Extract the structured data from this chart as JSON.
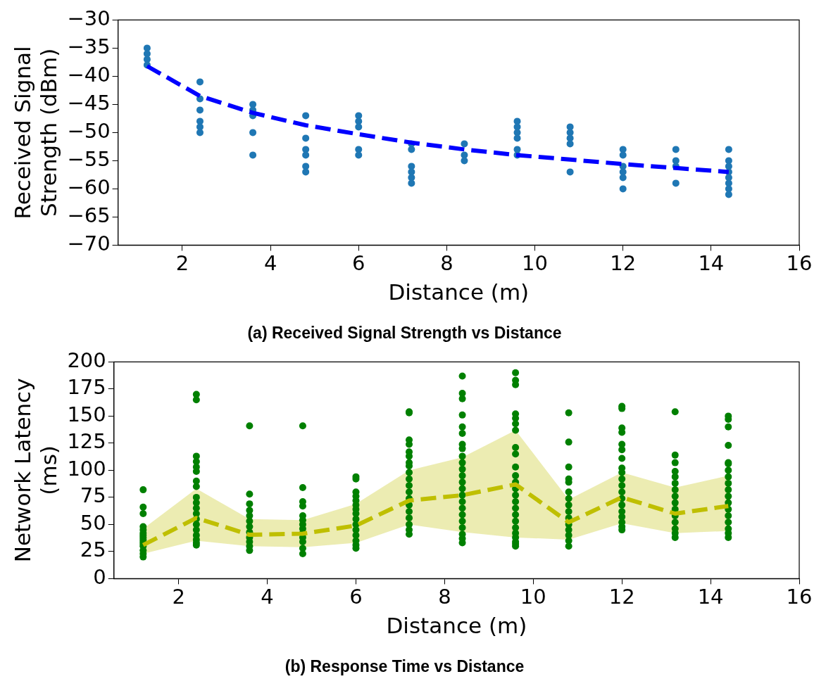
{
  "chart_data": [
    {
      "type": "scatter",
      "title": "(a) Received Signal Strength vs Distance",
      "xlabel": "Distance (m)",
      "ylabel": "Received Signal\nStrength (dBm)",
      "xlim": [
        0.54,
        16
      ],
      "xticks": [
        2,
        4,
        6,
        8,
        10,
        12,
        14,
        16
      ],
      "ylim": [
        -70,
        -30
      ],
      "yticks": [
        -70,
        -65,
        -60,
        -55,
        -50,
        -45,
        -40,
        -35,
        -30
      ],
      "grid": false,
      "legend": false,
      "marker": "circle",
      "series": [
        {
          "color": "#1f77b4",
          "x": [
            1.2,
            1.2,
            1.2,
            1.2,
            2.4,
            2.4,
            2.4,
            2.4,
            2.4,
            2.4,
            3.6,
            3.6,
            3.6,
            3.6,
            3.6,
            4.8,
            4.8,
            4.8,
            4.8,
            4.8,
            4.8,
            6,
            6,
            6,
            6,
            6,
            7.2,
            7.2,
            7.2,
            7.2,
            7.2,
            7.2,
            8.4,
            8.4,
            8.4,
            9.6,
            9.6,
            9.6,
            9.6,
            9.6,
            9.6,
            10.8,
            10.8,
            10.8,
            10.8,
            10.8,
            12,
            12,
            12,
            12,
            12,
            12,
            13.2,
            13.2,
            13.2,
            13.2,
            14.4,
            14.4,
            14.4,
            14.4,
            14.4,
            14.4,
            14.4,
            14.4
          ],
          "values": [
            -35,
            -36,
            -37,
            -38,
            -41,
            -44,
            -46,
            -48,
            -49,
            -50,
            -45,
            -46,
            -47,
            -50,
            -54,
            -47,
            -51,
            -53,
            -54,
            -56,
            -57,
            -47,
            -48,
            -49,
            -53,
            -54,
            -52,
            -53,
            -56,
            -57,
            -58,
            -59,
            -52,
            -54,
            -55,
            -48,
            -49,
            -50,
            -51,
            -53,
            -54,
            -49,
            -50,
            -51,
            -52,
            -57,
            -53,
            -54,
            -56,
            -57,
            -58,
            -60,
            -53,
            -55,
            -56,
            -59,
            -53,
            -55,
            -56,
            -57,
            -58,
            -59,
            -60,
            -61
          ]
        },
        {
          "type": "line",
          "color": "#0000ff",
          "line_style": "dashed",
          "marker": "none",
          "x": [
            1.2,
            2.4,
            3.6,
            4.8,
            6,
            7.2,
            8.4,
            9.6,
            10.8,
            12,
            13.2,
            14.4
          ],
          "values": [
            -38.2,
            -43.5,
            -46.5,
            -48.7,
            -50.3,
            -51.8,
            -53,
            -54,
            -54.8,
            -55.6,
            -56.3,
            -57
          ]
        }
      ]
    },
    {
      "type": "scatter",
      "title": "(b) Response Time vs Distance",
      "xlabel": "Distance (m)",
      "ylabel": "Network Latency\n(ms)",
      "xlim": [
        0.54,
        16
      ],
      "xticks": [
        2,
        4,
        6,
        8,
        10,
        12,
        14,
        16
      ],
      "ylim": [
        0,
        200
      ],
      "yticks": [
        0,
        25,
        50,
        75,
        100,
        125,
        150,
        175,
        200
      ],
      "grid": false,
      "legend": false,
      "marker": "circle",
      "series": [
        {
          "color": "#008000",
          "x": [
            1.2,
            1.2,
            1.2,
            1.2,
            1.2,
            1.2,
            1.2,
            1.2,
            1.2,
            1.2,
            1.2,
            1.2,
            1.2,
            1.2,
            1.2,
            2.4,
            2.4,
            2.4,
            2.4,
            2.4,
            2.4,
            2.4,
            2.4,
            2.4,
            2.4,
            2.4,
            2.4,
            2.4,
            2.4,
            2.4,
            2.4,
            2.4,
            2.4,
            2.4,
            3.6,
            3.6,
            3.6,
            3.6,
            3.6,
            3.6,
            3.6,
            3.6,
            3.6,
            3.6,
            3.6,
            3.6,
            4.8,
            4.8,
            4.8,
            4.8,
            4.8,
            4.8,
            4.8,
            4.8,
            4.8,
            4.8,
            4.8,
            4.8,
            4.8,
            6,
            6,
            6,
            6,
            6,
            6,
            6,
            6,
            6,
            6,
            6,
            6,
            6,
            6,
            6,
            7.2,
            7.2,
            7.2,
            7.2,
            7.2,
            7.2,
            7.2,
            7.2,
            7.2,
            7.2,
            7.2,
            7.2,
            7.2,
            7.2,
            7.2,
            7.2,
            7.2,
            7.2,
            7.2,
            8.4,
            8.4,
            8.4,
            8.4,
            8.4,
            8.4,
            8.4,
            8.4,
            8.4,
            8.4,
            8.4,
            8.4,
            8.4,
            8.4,
            8.4,
            8.4,
            8.4,
            8.4,
            8.4,
            8.4,
            8.4,
            8.4,
            8.4,
            9.6,
            9.6,
            9.6,
            9.6,
            9.6,
            9.6,
            9.6,
            9.6,
            9.6,
            9.6,
            9.6,
            9.6,
            9.6,
            9.6,
            9.6,
            9.6,
            9.6,
            9.6,
            9.6,
            9.6,
            9.6,
            9.6,
            9.6,
            9.6,
            10.8,
            10.8,
            10.8,
            10.8,
            10.8,
            10.8,
            10.8,
            10.8,
            10.8,
            10.8,
            10.8,
            10.8,
            10.8,
            10.8,
            10.8,
            12,
            12,
            12,
            12,
            12,
            12,
            12,
            12,
            12,
            12,
            12,
            12,
            12,
            12,
            12,
            12,
            12,
            12,
            12,
            13.2,
            13.2,
            13.2,
            13.2,
            13.2,
            13.2,
            13.2,
            13.2,
            13.2,
            13.2,
            13.2,
            13.2,
            13.2,
            13.2,
            13.2,
            14.4,
            14.4,
            14.4,
            14.4,
            14.4,
            14.4,
            14.4,
            14.4,
            14.4,
            14.4,
            14.4,
            14.4,
            14.4,
            14.4,
            14.4,
            14.4,
            14.4,
            14.4
          ],
          "values": [
            82,
            66,
            60,
            48,
            45,
            42,
            40,
            38,
            36,
            34,
            32,
            30,
            26,
            23,
            20,
            170,
            165,
            113,
            108,
            103,
            99,
            90,
            85,
            75,
            70,
            65,
            60,
            55,
            50,
            45,
            40,
            36,
            33,
            31,
            141,
            78,
            69,
            63,
            58,
            53,
            48,
            43,
            38,
            34,
            30,
            26,
            141,
            84,
            71,
            67,
            58,
            54,
            50,
            46,
            42,
            38,
            34,
            28,
            23,
            94,
            92,
            80,
            76,
            72,
            68,
            64,
            60,
            55,
            50,
            45,
            40,
            35,
            31,
            28,
            154,
            153,
            128,
            124,
            117,
            113,
            107,
            104,
            98,
            92,
            86,
            80,
            74,
            68,
            62,
            56,
            50,
            45,
            41,
            187,
            171,
            166,
            151,
            140,
            134,
            124,
            120,
            113,
            107,
            101,
            95,
            89,
            83,
            77,
            71,
            65,
            59,
            53,
            47,
            41,
            37,
            33,
            190,
            183,
            179,
            152,
            148,
            143,
            137,
            121,
            115,
            103,
            95,
            89,
            83,
            77,
            71,
            65,
            59,
            53,
            47,
            42,
            38,
            34,
            32,
            30,
            153,
            126,
            103,
            92,
            89,
            80,
            74,
            68,
            62,
            56,
            50,
            45,
            40,
            35,
            30,
            159,
            157,
            139,
            135,
            124,
            119,
            111,
            102,
            98,
            92,
            86,
            80,
            74,
            68,
            62,
            57,
            52,
            48,
            45,
            154,
            114,
            107,
            99,
            94,
            88,
            82,
            76,
            70,
            64,
            58,
            52,
            46,
            42,
            38,
            150,
            147,
            140,
            123,
            107,
            106,
            100,
            94,
            88,
            82,
            76,
            70,
            64,
            58,
            52,
            46,
            42,
            38
          ]
        },
        {
          "type": "line",
          "color": "#bfbf00",
          "line_style": "dashed",
          "marker": "none",
          "x": [
            1.2,
            2.4,
            3.6,
            4.8,
            6,
            7.2,
            8.4,
            9.6,
            10.8,
            12,
            13.2,
            14.4
          ],
          "values": [
            31,
            56,
            40.5,
            41.5,
            49,
            72,
            77,
            87,
            52,
            75,
            60,
            67
          ],
          "lower": [
            23,
            35,
            30,
            29,
            33,
            50,
            43,
            38,
            36,
            51,
            42,
            44
          ],
          "upper": [
            46,
            83,
            55,
            54,
            69,
            100,
            112,
            137,
            73,
            98,
            84,
            95
          ]
        }
      ]
    }
  ]
}
